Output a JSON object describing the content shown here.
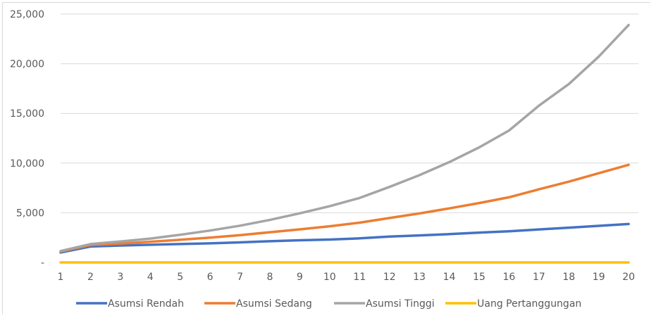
{
  "chart_data": {
    "type": "line",
    "title": "",
    "xlabel": "",
    "ylabel": "",
    "categories": [
      "1",
      "2",
      "3",
      "4",
      "5",
      "6",
      "7",
      "8",
      "9",
      "10",
      "11",
      "12",
      "13",
      "14",
      "15",
      "16",
      "17",
      "18",
      "19",
      "20"
    ],
    "y_ticks": [
      "-",
      "5,000",
      "10,000",
      "15,000",
      "20,000",
      "25,000"
    ],
    "y_tick_values": [
      0,
      5000,
      10000,
      15000,
      20000,
      25000
    ],
    "ylim": [
      0,
      25000
    ],
    "grid": true,
    "legend_position": "bottom",
    "series": [
      {
        "name": "Asumsi Rendah",
        "color": "#4472c4",
        "values": [
          1000,
          1600,
          1700,
          1780,
          1850,
          1920,
          2020,
          2130,
          2230,
          2300,
          2420,
          2600,
          2720,
          2850,
          3000,
          3130,
          3320,
          3500,
          3680,
          3870
        ]
      },
      {
        "name": "Asumsi Sedang",
        "color": "#ed7d31",
        "values": [
          1100,
          1750,
          1900,
          2080,
          2280,
          2490,
          2750,
          3040,
          3330,
          3640,
          4000,
          4470,
          4930,
          5440,
          5980,
          6560,
          7360,
          8130,
          8980,
          9820
        ]
      },
      {
        "name": "Asumsi Tinggi",
        "color": "#a5a5a5",
        "values": [
          1150,
          1850,
          2100,
          2400,
          2780,
          3210,
          3700,
          4280,
          4940,
          5660,
          6490,
          7600,
          8780,
          10100,
          11580,
          13280,
          15780,
          17960,
          20720,
          23900
        ]
      },
      {
        "name": "Uang Pertanggungan",
        "color": "#ffc000",
        "values": [
          0,
          0,
          0,
          0,
          0,
          0,
          0,
          0,
          0,
          0,
          0,
          0,
          0,
          0,
          0,
          0,
          0,
          0,
          0,
          0
        ]
      }
    ]
  }
}
